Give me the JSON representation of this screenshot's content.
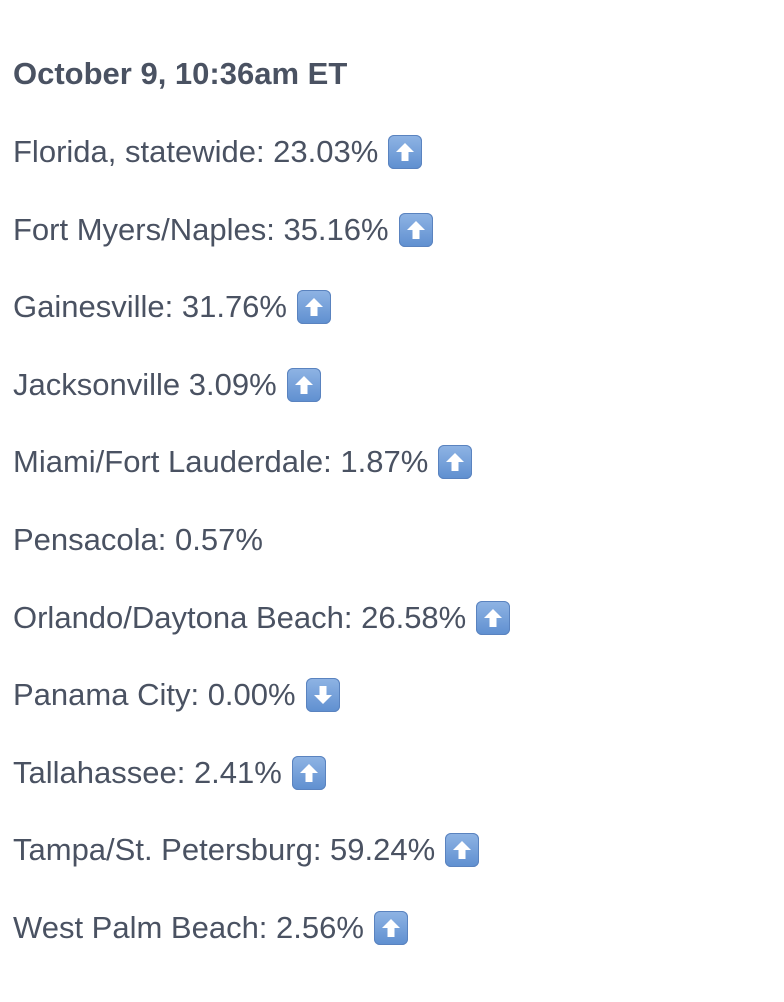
{
  "heading": "October 9, 10:36am ET",
  "rows": [
    {
      "label": "Florida, statewide: 23.03%",
      "trend": "up-arrow-icon"
    },
    {
      "label": "Fort Myers/Naples: 35.16%",
      "trend": "up-arrow-icon"
    },
    {
      "label": "Gainesville: 31.76%",
      "trend": "up-arrow-icon"
    },
    {
      "label": "Jacksonville 3.09%",
      "trend": "up-arrow-icon"
    },
    {
      "label": "Miami/Fort Lauderdale: 1.87%",
      "trend": "up-arrow-icon"
    },
    {
      "label": "Pensacola: 0.57%",
      "trend": ""
    },
    {
      "label": "Orlando/Daytona Beach: 26.58%",
      "trend": "up-arrow-icon"
    },
    {
      "label": "Panama City: 0.00%",
      "trend": "down-arrow-icon"
    },
    {
      "label": "Tallahassee: 2.41%",
      "trend": "up-arrow-icon"
    },
    {
      "label": "Tampa/St. Petersburg: 59.24%",
      "trend": "up-arrow-icon"
    },
    {
      "label": "West Palm Beach: 2.56%",
      "trend": "up-arrow-icon"
    }
  ]
}
